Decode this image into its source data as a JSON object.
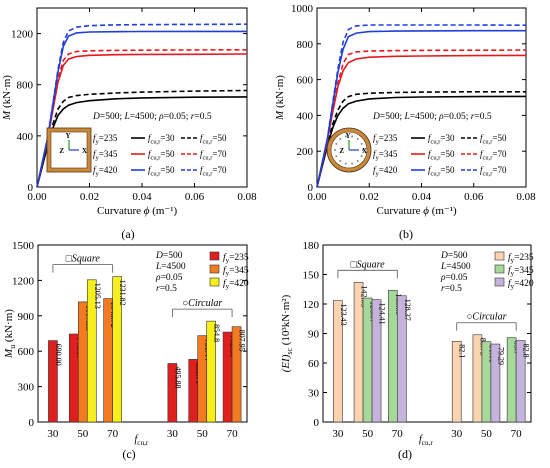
{
  "figure": {
    "panel_captions": [
      "(a)",
      "(b)",
      "(c)",
      "(d)"
    ]
  },
  "chart_data": [
    {
      "id": "a",
      "type": "line",
      "title": "",
      "xlabel": "Curvature ϕ (m⁻¹)",
      "ylabel": "M (kN·m)",
      "xlim": [
        0,
        0.08
      ],
      "ylim": [
        0,
        1400
      ],
      "xticks": [
        0.0,
        0.02,
        0.04,
        0.06,
        0.08
      ],
      "xtick_labels": [
        "0.00",
        "0.02",
        "0.04",
        "0.06",
        "0.08"
      ],
      "yticks": [
        0,
        400,
        800,
        1200
      ],
      "ytick_labels": [
        "0",
        "400",
        "800",
        "1200"
      ],
      "grid": false,
      "annotation": "D=500; L=4500; ρ=0.05; r=0.5",
      "inset": "square",
      "legend_rows": [
        {
          "fy": "f_y=235",
          "solid": "f_cu,r=30",
          "dashed": "f_cu,r=50"
        },
        {
          "fy": "f_y=345",
          "solid": "f_cu,r=50",
          "dashed": "f_cu,r=70"
        },
        {
          "fy": "f_y=420",
          "solid": "f_cu,r=50",
          "dashed": "f_cu,r=70"
        }
      ],
      "series": [
        {
          "color": "#000000",
          "dash": false,
          "x": [
            0,
            0.004,
            0.006,
            0.008,
            0.01,
            0.012,
            0.015,
            0.02,
            0.03,
            0.04,
            0.06,
            0.08
          ],
          "y": [
            0,
            320,
            460,
            560,
            610,
            640,
            660,
            675,
            690,
            697,
            702,
            705
          ]
        },
        {
          "color": "#000000",
          "dash": true,
          "x": [
            0,
            0.004,
            0.006,
            0.008,
            0.01,
            0.012,
            0.015,
            0.02,
            0.03,
            0.04,
            0.06,
            0.08
          ],
          "y": [
            0,
            330,
            490,
            610,
            670,
            700,
            715,
            725,
            735,
            742,
            750,
            755
          ]
        },
        {
          "color": "#e41a1c",
          "dash": false,
          "x": [
            0,
            0.004,
            0.006,
            0.008,
            0.01,
            0.012,
            0.015,
            0.02,
            0.03,
            0.04,
            0.06,
            0.08
          ],
          "y": [
            0,
            370,
            600,
            820,
            950,
            1000,
            1020,
            1030,
            1035,
            1037,
            1038,
            1040
          ]
        },
        {
          "color": "#e41a1c",
          "dash": true,
          "x": [
            0,
            0.004,
            0.006,
            0.008,
            0.01,
            0.012,
            0.015,
            0.02,
            0.03,
            0.04,
            0.06,
            0.08
          ],
          "y": [
            0,
            370,
            610,
            850,
            990,
            1040,
            1060,
            1065,
            1068,
            1070,
            1072,
            1073
          ]
        },
        {
          "color": "#1f3fd8",
          "dash": false,
          "x": [
            0,
            0.004,
            0.006,
            0.008,
            0.01,
            0.012,
            0.015,
            0.02,
            0.03,
            0.04,
            0.06,
            0.08
          ],
          "y": [
            0,
            380,
            640,
            900,
            1100,
            1180,
            1205,
            1212,
            1215,
            1216,
            1217,
            1217
          ]
        },
        {
          "color": "#1f3fd8",
          "dash": true,
          "x": [
            0,
            0.004,
            0.006,
            0.008,
            0.01,
            0.012,
            0.015,
            0.02,
            0.03,
            0.04,
            0.06,
            0.08
          ],
          "y": [
            0,
            380,
            650,
            920,
            1130,
            1220,
            1250,
            1262,
            1268,
            1270,
            1272,
            1273
          ]
        }
      ]
    },
    {
      "id": "b",
      "type": "line",
      "title": "",
      "xlabel": "Curvature ϕ (m⁻¹)",
      "ylabel": "M (kN·m)",
      "xlim": [
        0,
        0.08
      ],
      "ylim": [
        0,
        1000
      ],
      "xticks": [
        0.0,
        0.02,
        0.04,
        0.06,
        0.08
      ],
      "xtick_labels": [
        "0.00",
        "0.02",
        "0.04",
        "0.06",
        "0.08"
      ],
      "yticks": [
        0,
        200,
        400,
        600,
        800,
        1000
      ],
      "ytick_labels": [
        "0",
        "200",
        "400",
        "600",
        "800",
        "1000"
      ],
      "grid": false,
      "annotation": "D=500; L=4500; ρ=0.05; r=0.5",
      "inset": "circular",
      "legend_rows": [
        {
          "fy": "f_y=235",
          "solid": "f_cu,r=30",
          "dashed": "f_cu,r=50"
        },
        {
          "fy": "f_y=345",
          "solid": "f_cu,r=50",
          "dashed": "f_cu,r=70"
        },
        {
          "fy": "f_y=420",
          "solid": "f_cu,r=50",
          "dashed": "f_cu,r=70"
        }
      ],
      "series": [
        {
          "color": "#000000",
          "dash": false,
          "x": [
            0,
            0.004,
            0.006,
            0.008,
            0.01,
            0.012,
            0.015,
            0.02,
            0.03,
            0.04,
            0.06,
            0.08
          ],
          "y": [
            0,
            230,
            330,
            400,
            440,
            465,
            480,
            492,
            500,
            503,
            505,
            506
          ]
        },
        {
          "color": "#000000",
          "dash": true,
          "x": [
            0,
            0.004,
            0.006,
            0.008,
            0.01,
            0.012,
            0.015,
            0.02,
            0.03,
            0.04,
            0.06,
            0.08
          ],
          "y": [
            0,
            240,
            350,
            430,
            480,
            505,
            518,
            524,
            528,
            530,
            532,
            532
          ]
        },
        {
          "color": "#e41a1c",
          "dash": false,
          "x": [
            0,
            0.004,
            0.006,
            0.008,
            0.01,
            0.012,
            0.015,
            0.02,
            0.03,
            0.04,
            0.06,
            0.08
          ],
          "y": [
            0,
            260,
            420,
            560,
            650,
            695,
            715,
            725,
            730,
            732,
            734,
            735
          ]
        },
        {
          "color": "#e41a1c",
          "dash": true,
          "x": [
            0,
            0.004,
            0.006,
            0.008,
            0.01,
            0.012,
            0.015,
            0.02,
            0.03,
            0.04,
            0.06,
            0.08
          ],
          "y": [
            0,
            260,
            430,
            580,
            690,
            740,
            755,
            760,
            762,
            763,
            764,
            765
          ]
        },
        {
          "color": "#1f3fd8",
          "dash": false,
          "x": [
            0,
            0.004,
            0.006,
            0.008,
            0.01,
            0.012,
            0.015,
            0.02,
            0.03,
            0.04,
            0.06,
            0.08
          ],
          "y": [
            0,
            270,
            460,
            640,
            770,
            840,
            860,
            868,
            871,
            872,
            873,
            873
          ]
        },
        {
          "color": "#1f3fd8",
          "dash": true,
          "x": [
            0,
            0.004,
            0.006,
            0.008,
            0.01,
            0.012,
            0.015,
            0.02,
            0.03,
            0.04,
            0.06,
            0.08
          ],
          "y": [
            0,
            270,
            470,
            660,
            810,
            880,
            900,
            905,
            905,
            905,
            905,
            904
          ]
        }
      ]
    },
    {
      "id": "c",
      "type": "bar",
      "title": "",
      "xlabel": "f_cu,r",
      "ylabel": "M_u (kN·m)",
      "ylim": [
        0,
        1500
      ],
      "yticks": [
        0,
        300,
        600,
        900,
        1200,
        1500
      ],
      "ytick_labels": [
        "0",
        "300",
        "600",
        "900",
        "1200",
        "1500"
      ],
      "categories": [
        "30",
        "50",
        "70",
        "30",
        "50",
        "70"
      ],
      "groups": [
        {
          "label": "□Square",
          "categories": [
            0,
            1,
            2
          ]
        },
        {
          "label": "○Circular",
          "categories": [
            3,
            4,
            5
          ]
        }
      ],
      "info": [
        "D=500",
        "L=4500",
        "ρ=0.05",
        "r=0.5"
      ],
      "legend_position": "top-right",
      "series": [
        {
          "name": "f_y=235",
          "color": "#e0201f",
          "values": [
            690.0,
            745.67,
            null,
            495.88,
            530.71,
            762.36
          ]
        },
        {
          "name": "f_y=345",
          "color": "#f47a21",
          "values": [
            null,
            1017.83,
            1045.72,
            null,
            731.44,
            807.95
          ]
        },
        {
          "name": "f_y=420",
          "color": "#f6ef1c",
          "values": [
            null,
            1205.13,
            1231.82,
            null,
            854.8,
            null
          ]
        }
      ],
      "bar_labels": [
        [
          "690.00",
          "745.67",
          "",
          "495.88",
          "530.71",
          "762.36"
        ],
        [
          "",
          "1017.83",
          "1045.72",
          "",
          "731.44",
          "807.95"
        ],
        [
          "",
          "1205.13",
          "1231.82",
          "",
          "854.8",
          ""
        ]
      ]
    },
    {
      "id": "d",
      "type": "bar",
      "title": "",
      "xlabel": "f_cu,r",
      "ylabel": "(EI)_sc (10³kN·m²)",
      "ylim": [
        0,
        180
      ],
      "yticks": [
        0,
        30,
        60,
        90,
        120,
        150,
        180
      ],
      "ytick_labels": [
        "0",
        "30",
        "60",
        "90",
        "120",
        "150",
        "180"
      ],
      "categories": [
        "30",
        "50",
        "70",
        "30",
        "50",
        "70"
      ],
      "groups": [
        {
          "label": "□Square",
          "categories": [
            0,
            1,
            2
          ]
        },
        {
          "label": "○Circular",
          "categories": [
            3,
            4,
            5
          ]
        }
      ],
      "info": [
        "D=500",
        "L=4500",
        "ρ=0.05",
        "r=0.5"
      ],
      "legend_position": "top-right",
      "series": [
        {
          "name": "f_y=235",
          "color": "#fbd3b0",
          "values": [
            123.43,
            142.03,
            null,
            82.1,
            88.73,
            null
          ]
        },
        {
          "name": "f_y=345",
          "color": "#a6d89a",
          "values": [
            null,
            126.07,
            133.89,
            null,
            81.61,
            85.7
          ]
        },
        {
          "name": "f_y=420",
          "color": "#c6b3dd",
          "values": [
            null,
            124.41,
            128.37,
            null,
            79.29,
            82.8
          ]
        }
      ],
      "bar_labels": [
        [
          "123.43",
          "142.03",
          "",
          "82.1",
          "88.73",
          ""
        ],
        [
          "",
          "126.07",
          "133.89",
          "",
          "81.61",
          "85.7"
        ],
        [
          "",
          "124.41",
          "128.37",
          "",
          "79.29",
          "82.8"
        ]
      ]
    }
  ]
}
